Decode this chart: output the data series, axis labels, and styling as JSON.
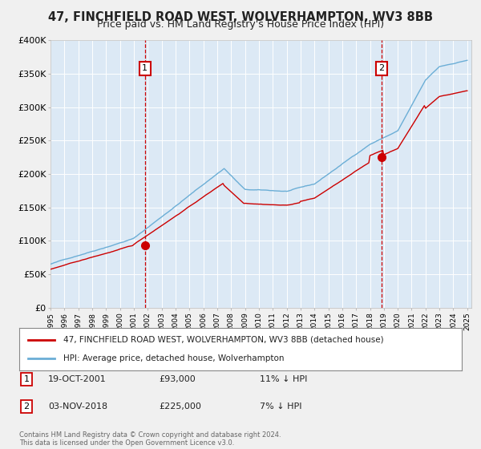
{
  "title": "47, FINCHFIELD ROAD WEST, WOLVERHAMPTON, WV3 8BB",
  "subtitle": "Price paid vs. HM Land Registry's House Price Index (HPI)",
  "fig_bg_color": "#f0f0f0",
  "plot_bg_color": "#dce9f5",
  "yticks": [
    0,
    50000,
    100000,
    150000,
    200000,
    250000,
    300000,
    350000,
    400000
  ],
  "ytick_labels": [
    "£0",
    "£50K",
    "£100K",
    "£150K",
    "£200K",
    "£250K",
    "£300K",
    "£350K",
    "£400K"
  ],
  "sale1_year": 2001.8,
  "sale1_price": 93000,
  "sale2_year": 2018.83,
  "sale2_price": 225000,
  "legend_line1": "47, FINCHFIELD ROAD WEST, WOLVERHAMPTON, WV3 8BB (detached house)",
  "legend_line2": "HPI: Average price, detached house, Wolverhampton",
  "annotation1_label": "1",
  "annotation1_date": "19-OCT-2001",
  "annotation1_price": "£93,000",
  "annotation1_hpi": "11% ↓ HPI",
  "annotation2_label": "2",
  "annotation2_date": "03-NOV-2018",
  "annotation2_price": "£225,000",
  "annotation2_hpi": "7% ↓ HPI",
  "footer": "Contains HM Land Registry data © Crown copyright and database right 2024.\nThis data is licensed under the Open Government Licence v3.0.",
  "hpi_color": "#6baed6",
  "price_color": "#cc0000",
  "vline_color": "#cc0000",
  "grid_color": "#ffffff",
  "hpi_noise_std": 3000,
  "price_noise_std": 2000
}
